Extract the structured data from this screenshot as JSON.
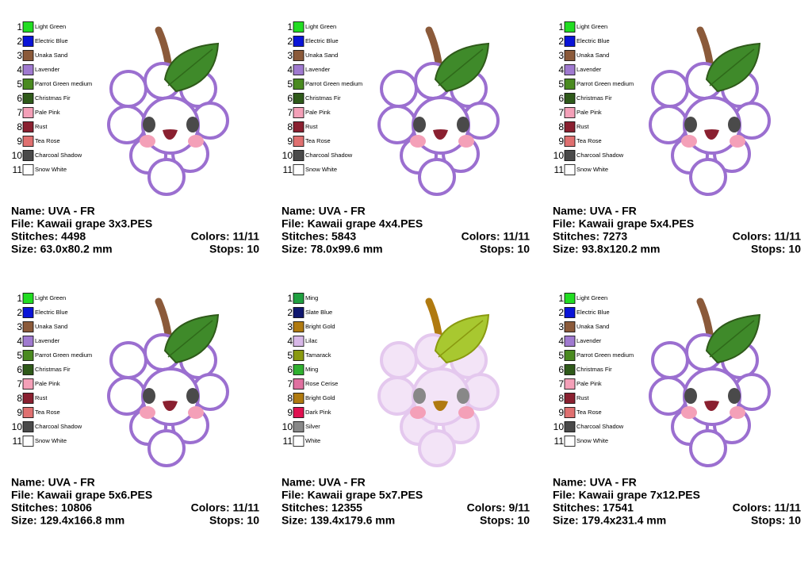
{
  "panels": [
    {
      "colors": [
        {
          "num": "1",
          "name": "Light Green",
          "color": "#22dd22"
        },
        {
          "num": "2",
          "name": "Electric Blue",
          "color": "#0a14d8"
        },
        {
          "num": "3",
          "name": "Unaka Sand",
          "color": "#8b5a3a"
        },
        {
          "num": "4",
          "name": "Lavender",
          "color": "#a07ad0"
        },
        {
          "num": "5",
          "name": "Parrot Green medium",
          "color": "#4a8a20"
        },
        {
          "num": "6",
          "name": "Christmas Fir",
          "color": "#2f5a1a"
        },
        {
          "num": "7",
          "name": "Pale Pink",
          "color": "#f4a0b8"
        },
        {
          "num": "8",
          "name": "Rust",
          "color": "#8a2030"
        },
        {
          "num": "9",
          "name": "Tea Rose",
          "color": "#e07070"
        },
        {
          "num": "10",
          "name": "Charcoal Shadow",
          "color": "#4a4a4a"
        },
        {
          "num": "11",
          "name": "Snow White",
          "color": "#ffffff"
        }
      ],
      "name": "Name: UVA - FR",
      "file": "File: Kawaii grape 3x3.PES",
      "stitches": "Stitches: 4498",
      "color_count": "Colors: 11/11",
      "size": "Size: 63.0x80.2 mm",
      "stops": "Stops: 10"
    },
    {
      "colors": [
        {
          "num": "1",
          "name": "Light Green",
          "color": "#22dd22"
        },
        {
          "num": "2",
          "name": "Electric Blue",
          "color": "#0a14d8"
        },
        {
          "num": "3",
          "name": "Unaka Sand",
          "color": "#8b5a3a"
        },
        {
          "num": "4",
          "name": "Lavender",
          "color": "#a07ad0"
        },
        {
          "num": "5",
          "name": "Parrot Green medium",
          "color": "#4a8a20"
        },
        {
          "num": "6",
          "name": "Christmas Fir",
          "color": "#2f5a1a"
        },
        {
          "num": "7",
          "name": "Pale Pink",
          "color": "#f4a0b8"
        },
        {
          "num": "8",
          "name": "Rust",
          "color": "#8a2030"
        },
        {
          "num": "9",
          "name": "Tea Rose",
          "color": "#e07070"
        },
        {
          "num": "10",
          "name": "Charcoal Shadow",
          "color": "#4a4a4a"
        },
        {
          "num": "11",
          "name": "Snow White",
          "color": "#ffffff"
        }
      ],
      "name": "Name: UVA - FR",
      "file": "File: Kawaii grape 4x4.PES",
      "stitches": "Stitches: 5843",
      "color_count": "Colors: 11/11",
      "size": "Size: 78.0x99.6 mm",
      "stops": "Stops: 10"
    },
    {
      "colors": [
        {
          "num": "1",
          "name": "Light Green",
          "color": "#22dd22"
        },
        {
          "num": "2",
          "name": "Electric Blue",
          "color": "#0a14d8"
        },
        {
          "num": "3",
          "name": "Unaka Sand",
          "color": "#8b5a3a"
        },
        {
          "num": "4",
          "name": "Lavender",
          "color": "#a07ad0"
        },
        {
          "num": "5",
          "name": "Parrot Green medium",
          "color": "#4a8a20"
        },
        {
          "num": "6",
          "name": "Christmas Fir",
          "color": "#2f5a1a"
        },
        {
          "num": "7",
          "name": "Pale Pink",
          "color": "#f4a0b8"
        },
        {
          "num": "8",
          "name": "Rust",
          "color": "#8a2030"
        },
        {
          "num": "9",
          "name": "Tea Rose",
          "color": "#e07070"
        },
        {
          "num": "10",
          "name": "Charcoal Shadow",
          "color": "#4a4a4a"
        },
        {
          "num": "11",
          "name": "Snow White",
          "color": "#ffffff"
        }
      ],
      "name": "Name: UVA - FR",
      "file": "File: Kawaii grape 5x4.PES",
      "stitches": "Stitches: 7273",
      "color_count": "Colors: 11/11",
      "size": "Size: 93.8x120.2 mm",
      "stops": "Stops: 10"
    },
    {
      "colors": [
        {
          "num": "1",
          "name": "Light Green",
          "color": "#22dd22"
        },
        {
          "num": "2",
          "name": "Electric Blue",
          "color": "#0a14d8"
        },
        {
          "num": "3",
          "name": "Unaka Sand",
          "color": "#8b5a3a"
        },
        {
          "num": "4",
          "name": "Lavender",
          "color": "#a07ad0"
        },
        {
          "num": "5",
          "name": "Parrot Green medium",
          "color": "#4a8a20"
        },
        {
          "num": "6",
          "name": "Christmas Fir",
          "color": "#2f5a1a"
        },
        {
          "num": "7",
          "name": "Pale Pink",
          "color": "#f4a0b8"
        },
        {
          "num": "8",
          "name": "Rust",
          "color": "#8a2030"
        },
        {
          "num": "9",
          "name": "Tea Rose",
          "color": "#e07070"
        },
        {
          "num": "10",
          "name": "Charcoal Shadow",
          "color": "#4a4a4a"
        },
        {
          "num": "11",
          "name": "Snow White",
          "color": "#ffffff"
        }
      ],
      "name": "Name: UVA - FR",
      "file": "File: Kawaii grape 5x6.PES",
      "stitches": "Stitches: 10806",
      "color_count": "Colors: 11/11",
      "size": "Size: 129.4x166.8 mm",
      "stops": "Stops: 10"
    },
    {
      "colors": [
        {
          "num": "1",
          "name": "Ming",
          "color": "#20a040"
        },
        {
          "num": "2",
          "name": "Slate Blue",
          "color": "#101870"
        },
        {
          "num": "3",
          "name": "Bright Gold",
          "color": "#b07a10"
        },
        {
          "num": "4",
          "name": "Lilac",
          "color": "#d8b8e8"
        },
        {
          "num": "5",
          "name": "Tamarack",
          "color": "#8a9a10"
        },
        {
          "num": "6",
          "name": "Ming",
          "color": "#30b030"
        },
        {
          "num": "7",
          "name": "Rose Cerise",
          "color": "#e070a0"
        },
        {
          "num": "8",
          "name": "Bright Gold",
          "color": "#b07a10"
        },
        {
          "num": "9",
          "name": "Dark Pink",
          "color": "#e01050"
        },
        {
          "num": "10",
          "name": "Silver",
          "color": "#888888"
        },
        {
          "num": "11",
          "name": "White",
          "color": "#ffffff"
        }
      ],
      "name": "Name: UVA - FR",
      "file": "File: Kawaii grape 5x7.PES",
      "stitches": "Stitches: 12355",
      "color_count": "Colors: 9/11",
      "size": "Size: 139.4x179.6 mm",
      "stops": "Stops: 10"
    },
    {
      "colors": [
        {
          "num": "1",
          "name": "Light Green",
          "color": "#22dd22"
        },
        {
          "num": "2",
          "name": "Electric Blue",
          "color": "#0a14d8"
        },
        {
          "num": "3",
          "name": "Unaka Sand",
          "color": "#8b5a3a"
        },
        {
          "num": "4",
          "name": "Lavender",
          "color": "#a07ad0"
        },
        {
          "num": "5",
          "name": "Parrot Green medium",
          "color": "#4a8a20"
        },
        {
          "num": "6",
          "name": "Christmas Fir",
          "color": "#2f5a1a"
        },
        {
          "num": "7",
          "name": "Pale Pink",
          "color": "#f4a0b8"
        },
        {
          "num": "8",
          "name": "Rust",
          "color": "#8a2030"
        },
        {
          "num": "9",
          "name": "Tea Rose",
          "color": "#e07070"
        },
        {
          "num": "10",
          "name": "Charcoal Shadow",
          "color": "#4a4a4a"
        },
        {
          "num": "11",
          "name": "Snow White",
          "color": "#ffffff"
        }
      ],
      "name": "Name: UVA - FR",
      "file": "File: Kawaii grape 7x12.PES",
      "stitches": "Stitches: 17541",
      "color_count": "Colors: 11/11",
      "size": "Size: 179.4x231.4 mm",
      "stops": "Stops: 10"
    }
  ]
}
